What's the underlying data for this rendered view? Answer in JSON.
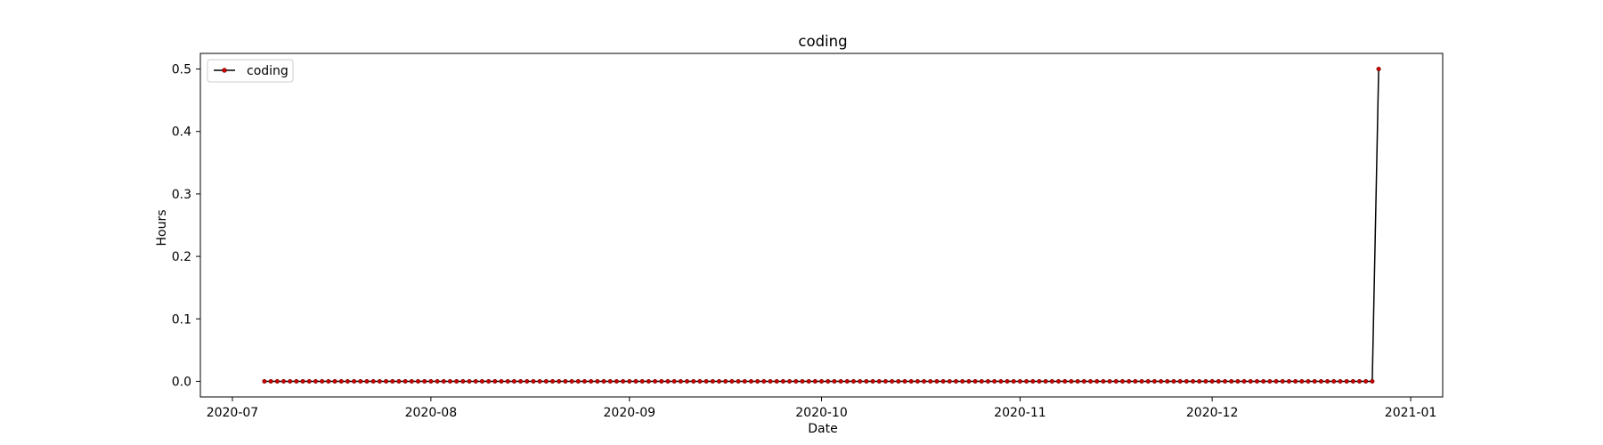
{
  "chart_data": {
    "type": "line",
    "title": "coding",
    "xlabel": "Date",
    "ylabel": "Hours",
    "x_range": [
      "2020-06-26",
      "2021-01-06"
    ],
    "ylim": [
      -0.025,
      0.525
    ],
    "x_ticks": [
      "2020-07",
      "2020-08",
      "2020-09",
      "2020-10",
      "2020-11",
      "2020-12",
      "2021-01"
    ],
    "y_ticks": [
      "0.0",
      "0.1",
      "0.2",
      "0.3",
      "0.4",
      "0.5"
    ],
    "legend": {
      "placement": "top-left",
      "entries": [
        "coding"
      ]
    },
    "grid": false,
    "series": [
      {
        "name": "coding",
        "line_color": "#000000",
        "marker_color": "#cc0000",
        "x_start": "2020-07-06",
        "x_end": "2020-12-27",
        "constant_value": 0.0,
        "final_value": 0.5
      }
    ]
  }
}
